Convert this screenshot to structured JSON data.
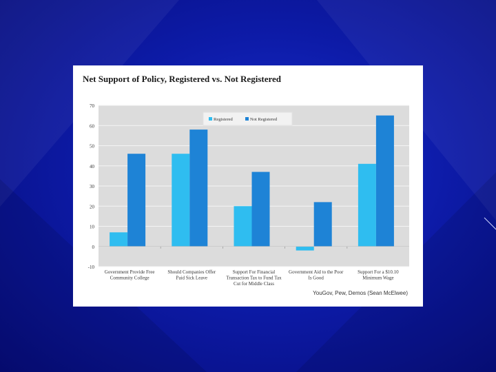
{
  "colors": {
    "registered": "#2fbdf0",
    "not_registered": "#1e83d6",
    "plot_bg": "#dcdcdc"
  },
  "chart_data": {
    "type": "bar",
    "title": "Net Support of Policy, Registered vs. Not Registered",
    "source": "YouGov, Pew, Demos (Sean McElwee)",
    "categories": [
      [
        "Government Provide Free",
        "Community College"
      ],
      [
        "Should Companies Offer",
        "Paid Sick Leave"
      ],
      [
        "Support For Financial",
        "Transaction Tax to Fund Tax",
        "Cut for Middle Class"
      ],
      [
        "Government Aid to the Poor",
        "Is Good"
      ],
      [
        "Support For a $10.10",
        "Minimum Wage"
      ]
    ],
    "series": [
      {
        "name": "Registered",
        "values": [
          7,
          46,
          20,
          -2,
          41
        ]
      },
      {
        "name": "Not Registered",
        "values": [
          46,
          58,
          37,
          22,
          65
        ]
      }
    ],
    "ylim": [
      -10,
      70
    ],
    "yticks": [
      70,
      60,
      50,
      40,
      30,
      20,
      10,
      0,
      -10
    ],
    "legend": "top-center",
    "grid": true
  }
}
